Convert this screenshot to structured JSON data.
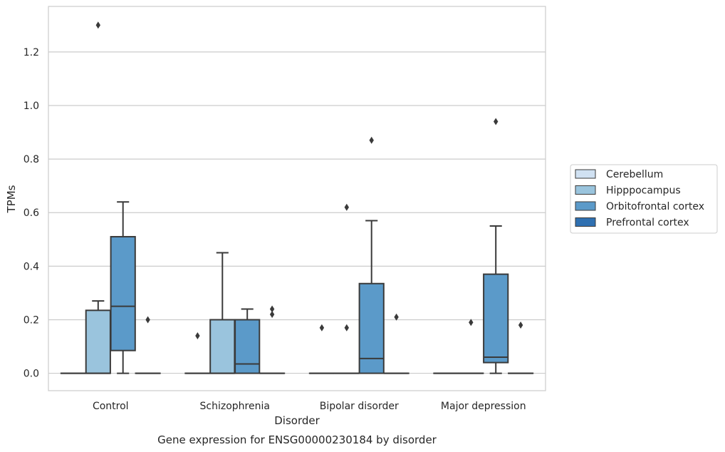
{
  "chart_data": {
    "type": "box",
    "title": "",
    "caption": "Gene expression for ENSG00000230184 by disorder",
    "xlabel": "Disorder",
    "ylabel": "TPMs",
    "ylim": [
      -0.065,
      1.37
    ],
    "yticks": [
      0.0,
      0.2,
      0.4,
      0.6,
      0.8,
      1.0,
      1.2
    ],
    "ytick_labels": [
      "0.0",
      "0.2",
      "0.4",
      "0.6",
      "0.8",
      "1.0",
      "1.2"
    ],
    "grid": "horizontal",
    "legend_position": "right",
    "categories": [
      "Control",
      "Schizophrenia",
      "Bipolar disorder",
      "Major depression"
    ],
    "series": [
      {
        "name": "Cerebellum",
        "color": "#d0e1f2",
        "boxes": [
          {
            "q1": 0,
            "median": 0,
            "q3": 0,
            "whislo": 0,
            "whishi": 0,
            "fliers": []
          },
          {
            "q1": 0,
            "median": 0,
            "q3": 0,
            "whislo": 0,
            "whishi": 0,
            "fliers": [
              0.14
            ]
          },
          {
            "q1": 0,
            "median": 0,
            "q3": 0,
            "whislo": 0,
            "whishi": 0,
            "fliers": [
              0.17
            ]
          },
          {
            "q1": 0,
            "median": 0,
            "q3": 0,
            "whislo": 0,
            "whishi": 0,
            "fliers": []
          }
        ]
      },
      {
        "name": "Hipppocampus",
        "color": "#9ac4dd",
        "boxes": [
          {
            "q1": 0,
            "median": 0,
            "q3": 0.235,
            "whislo": 0,
            "whishi": 0.27,
            "fliers": [
              1.3
            ]
          },
          {
            "q1": 0,
            "median": 0,
            "q3": 0.2,
            "whislo": 0,
            "whishi": 0.45,
            "fliers": []
          },
          {
            "q1": 0,
            "median": 0,
            "q3": 0,
            "whislo": 0,
            "whishi": 0,
            "fliers": [
              0.17,
              0.62
            ]
          },
          {
            "q1": 0,
            "median": 0,
            "q3": 0,
            "whislo": 0,
            "whishi": 0,
            "fliers": [
              0.19
            ]
          }
        ]
      },
      {
        "name": "Orbitofrontal cortex",
        "color": "#5b9ac9",
        "boxes": [
          {
            "q1": 0.085,
            "median": 0.25,
            "q3": 0.51,
            "whislo": 0,
            "whishi": 0.64,
            "fliers": []
          },
          {
            "q1": 0,
            "median": 0.035,
            "q3": 0.2,
            "whislo": 0,
            "whishi": 0.24,
            "fliers": []
          },
          {
            "q1": 0,
            "median": 0.055,
            "q3": 0.335,
            "whislo": 0,
            "whishi": 0.57,
            "fliers": [
              0.87
            ]
          },
          {
            "q1": 0.04,
            "median": 0.06,
            "q3": 0.37,
            "whislo": 0,
            "whishi": 0.55,
            "fliers": [
              0.94
            ]
          }
        ]
      },
      {
        "name": "Prefrontal cortex",
        "color": "#2f70b1",
        "boxes": [
          {
            "q1": 0,
            "median": 0,
            "q3": 0,
            "whislo": 0,
            "whishi": 0,
            "fliers": [
              0.2
            ]
          },
          {
            "q1": 0,
            "median": 0,
            "q3": 0,
            "whislo": 0,
            "whishi": 0,
            "fliers": [
              0.22,
              0.24
            ]
          },
          {
            "q1": 0,
            "median": 0,
            "q3": 0,
            "whislo": 0,
            "whishi": 0,
            "fliers": [
              0.21
            ]
          },
          {
            "q1": 0,
            "median": 0,
            "q3": 0,
            "whislo": 0,
            "whishi": 0,
            "fliers": [
              0.18
            ]
          }
        ]
      }
    ]
  }
}
